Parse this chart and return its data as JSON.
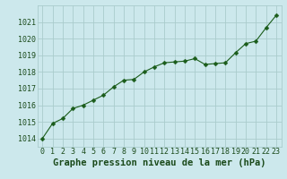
{
  "x": [
    0,
    1,
    2,
    3,
    4,
    5,
    6,
    7,
    8,
    9,
    10,
    11,
    12,
    13,
    14,
    15,
    16,
    17,
    18,
    19,
    20,
    21,
    22,
    23
  ],
  "y": [
    1014.0,
    1014.9,
    1015.2,
    1015.8,
    1016.0,
    1016.3,
    1016.6,
    1017.1,
    1017.5,
    1017.55,
    1018.0,
    1018.3,
    1018.55,
    1018.6,
    1018.65,
    1018.8,
    1018.45,
    1018.5,
    1018.55,
    1019.15,
    1019.7,
    1019.85,
    1020.65,
    1021.4
  ],
  "line_color": "#1a5c1a",
  "marker": "D",
  "marker_size": 2.5,
  "bg_color": "#cce8ec",
  "grid_color": "#aacccc",
  "xlabel": "Graphe pression niveau de la mer (hPa)",
  "xlabel_color": "#1a4a1a",
  "ylim": [
    1013.5,
    1022.0
  ],
  "xlim": [
    -0.5,
    23.5
  ],
  "yticks": [
    1014,
    1015,
    1016,
    1017,
    1018,
    1019,
    1020,
    1021
  ],
  "xticks": [
    0,
    1,
    2,
    3,
    4,
    5,
    6,
    7,
    8,
    9,
    10,
    11,
    12,
    13,
    14,
    15,
    16,
    17,
    18,
    19,
    20,
    21,
    22,
    23
  ],
  "tick_label_color": "#1a4a1a",
  "tick_label_fontsize": 6,
  "xlabel_fontsize": 7.5
}
